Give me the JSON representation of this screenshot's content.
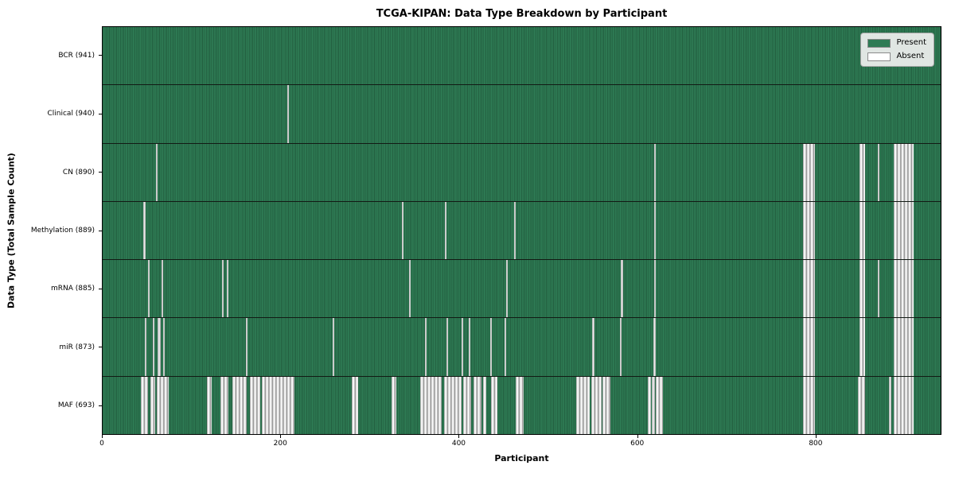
{
  "chart_data": {
    "type": "heatmap",
    "title": "TCGA-KIPAN: Data Type Breakdown by Participant",
    "xlabel": "Participant",
    "ylabel": "Data Type (Total Sample Count)",
    "x_range": [
      0,
      941
    ],
    "x_ticks": [
      0,
      200,
      400,
      600,
      800
    ],
    "grid": false,
    "legend_position": "upper right",
    "legend": [
      {
        "label": "Present",
        "color": "#2e7b54"
      },
      {
        "label": "Absent",
        "color": "#ffffff"
      }
    ],
    "present_color": "#2e7b54",
    "absent_color": "#ffffff",
    "rows": [
      {
        "label": "BCR (941)",
        "total": 941,
        "absent_ranges": []
      },
      {
        "label": "Clinical (940)",
        "total": 940,
        "absent_ranges": [
          [
            207,
            209
          ]
        ]
      },
      {
        "label": "CN (890)",
        "total": 890,
        "absent_ranges": [
          [
            60,
            62
          ],
          [
            619,
            621
          ],
          [
            786,
            800
          ],
          [
            850,
            856
          ],
          [
            870,
            872
          ],
          [
            888,
            911
          ]
        ]
      },
      {
        "label": "Methylation (889)",
        "total": 889,
        "absent_ranges": [
          [
            46,
            48
          ],
          [
            336,
            338
          ],
          [
            384,
            386
          ],
          [
            462,
            464
          ],
          [
            619,
            621
          ],
          [
            786,
            800
          ],
          [
            850,
            856
          ],
          [
            888,
            911
          ]
        ]
      },
      {
        "label": "mRNA (885)",
        "total": 885,
        "absent_ranges": [
          [
            51,
            53
          ],
          [
            66,
            68
          ],
          [
            134,
            136
          ],
          [
            139,
            141
          ],
          [
            344,
            346
          ],
          [
            453,
            455
          ],
          [
            582,
            584
          ],
          [
            619,
            621
          ],
          [
            786,
            800
          ],
          [
            850,
            856
          ],
          [
            870,
            872
          ],
          [
            888,
            911
          ]
        ]
      },
      {
        "label": "miR (873)",
        "total": 873,
        "absent_ranges": [
          [
            47,
            49
          ],
          [
            56,
            58
          ],
          [
            62,
            65
          ],
          [
            68,
            70
          ],
          [
            161,
            163
          ],
          [
            258,
            260
          ],
          [
            362,
            364
          ],
          [
            386,
            388
          ],
          [
            403,
            405
          ],
          [
            411,
            413
          ],
          [
            435,
            437
          ],
          [
            451,
            453
          ],
          [
            550,
            552
          ],
          [
            581,
            583
          ],
          [
            618,
            621
          ],
          [
            786,
            800
          ],
          [
            850,
            856
          ],
          [
            888,
            911
          ]
        ]
      },
      {
        "label": "MAF (693)",
        "total": 693,
        "absent_ranges": [
          [
            43,
            51
          ],
          [
            54,
            59
          ],
          [
            61,
            74
          ],
          [
            117,
            122
          ],
          [
            132,
            141
          ],
          [
            146,
            162
          ],
          [
            165,
            177
          ],
          [
            179,
            215
          ],
          [
            280,
            287
          ],
          [
            324,
            330
          ],
          [
            357,
            381
          ],
          [
            383,
            403
          ],
          [
            405,
            414
          ],
          [
            416,
            425
          ],
          [
            427,
            431
          ],
          [
            436,
            443
          ],
          [
            464,
            473
          ],
          [
            532,
            547
          ],
          [
            549,
            560
          ],
          [
            561,
            570
          ],
          [
            612,
            616
          ],
          [
            617,
            620
          ],
          [
            621,
            629
          ],
          [
            786,
            800
          ],
          [
            848,
            856
          ],
          [
            883,
            886
          ],
          [
            888,
            911
          ]
        ]
      }
    ]
  }
}
